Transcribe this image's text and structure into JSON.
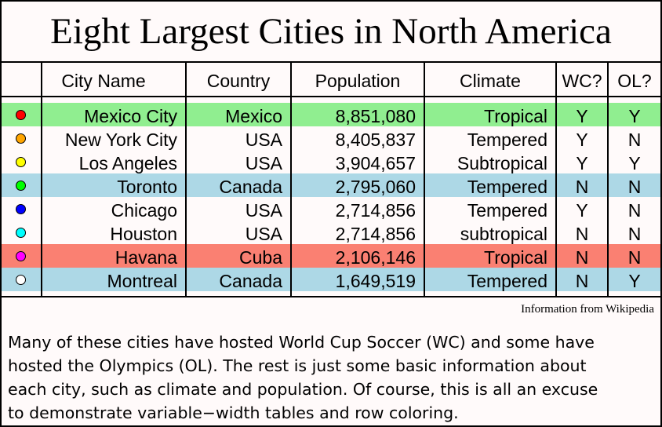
{
  "title": "Eight Largest Cities in North America",
  "columns": {
    "city": "City Name",
    "country": "Country",
    "population": "Population",
    "climate": "Climate",
    "wc": "WC?",
    "ol": "OL?"
  },
  "rows": [
    {
      "dot": "#ff0000",
      "bg": "#90ee90",
      "city": "Mexico City",
      "country": "Mexico",
      "population": "8,851,080",
      "climate": "Tropical",
      "wc": "Y",
      "ol": "Y"
    },
    {
      "dot": "#ffa500",
      "bg": "",
      "city": "New York City",
      "country": "USA",
      "population": "8,405,837",
      "climate": "Tempered",
      "wc": "Y",
      "ol": "N"
    },
    {
      "dot": "#ffff00",
      "bg": "",
      "city": "Los Angeles",
      "country": "USA",
      "population": "3,904,657",
      "climate": "Subtropical",
      "wc": "Y",
      "ol": "Y"
    },
    {
      "dot": "#00ff00",
      "bg": "#add8e6",
      "city": "Toronto",
      "country": "Canada",
      "population": "2,795,060",
      "climate": "Tempered",
      "wc": "N",
      "ol": "N"
    },
    {
      "dot": "#0000ff",
      "bg": "",
      "city": "Chicago",
      "country": "USA",
      "population": "2,714,856",
      "climate": "Tempered",
      "wc": "Y",
      "ol": "N"
    },
    {
      "dot": "#00ffff",
      "bg": "",
      "city": "Houston",
      "country": "USA",
      "population": "2,714,856",
      "climate": "subtropical",
      "wc": "N",
      "ol": "N"
    },
    {
      "dot": "#ff00ff",
      "bg": "#fa8072",
      "city": "Havana",
      "country": "Cuba",
      "population": "2,106,146",
      "climate": "Tropical",
      "wc": "N",
      "ol": "N"
    },
    {
      "dot": "#ffffff",
      "bg": "#add8e6",
      "city": "Montreal",
      "country": "Canada",
      "population": "1,649,519",
      "climate": "Tempered",
      "wc": "N",
      "ol": "Y"
    }
  ],
  "source": "Information from Wikipedia",
  "blurb": "Many of these cities have hosted World Cup Soccer (WC) and some have\nhosted the Olympics (OL).  The rest is just some basic information about\neach city, such as climate and population.  Of course, this is all an excuse\nto demonstrate variable−width tables and row coloring."
}
